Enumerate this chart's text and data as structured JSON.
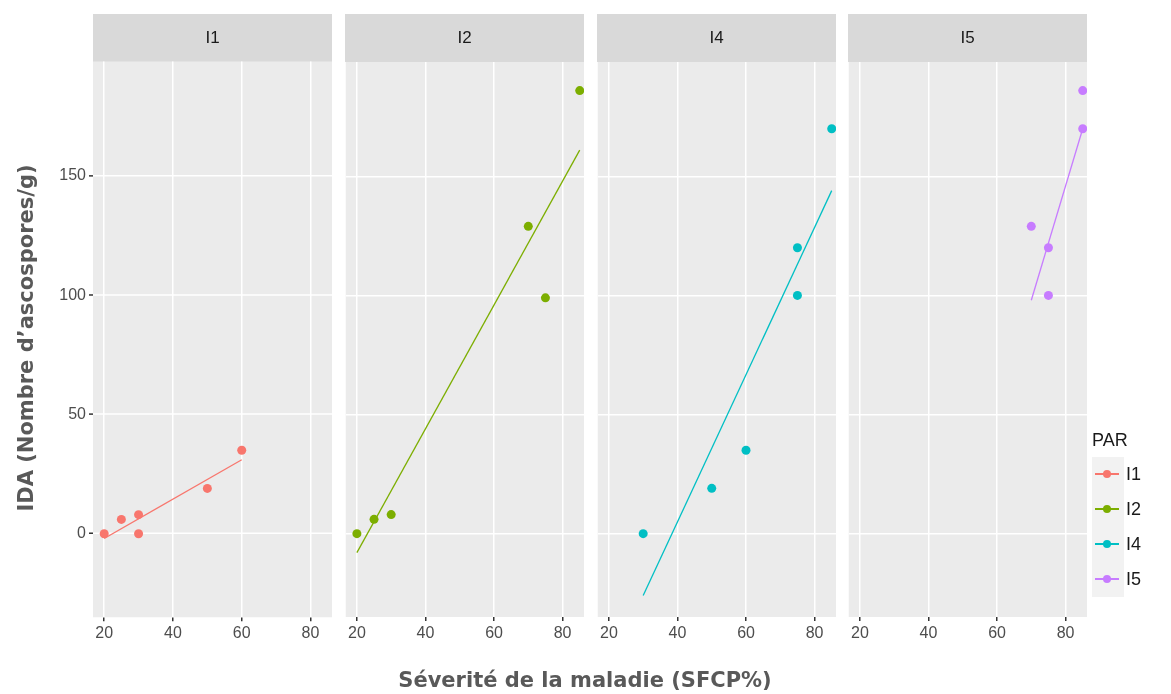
{
  "chart_data": [
    {
      "type": "scatter",
      "title": "I1",
      "ylabel": "IDA (Nombre d’ascospores/g)",
      "xlabel": "Séverité de la maladie (SFCP%)",
      "xlim": [
        16.75,
        86.25
      ],
      "xticks": [
        20,
        40,
        60,
        80
      ],
      "ylim": [
        -35,
        198
      ],
      "yticks": [
        0,
        50,
        100,
        150
      ],
      "grid": true,
      "tick_labels": "xy",
      "series": [
        {
          "name": "I1",
          "type": "scatter",
          "marker": "circle",
          "color": "#f8766d",
          "x": [
            20,
            25,
            30,
            30,
            50,
            60
          ],
          "values": [
            0,
            6,
            8,
            0,
            19,
            35
          ]
        },
        {
          "type": "line",
          "marker": "none",
          "color": "#f8766d",
          "x": [
            20,
            60
          ],
          "values": [
            -2,
            31
          ]
        }
      ]
    },
    {
      "type": "scatter",
      "title": "I2",
      "xlim": [
        16.75,
        86.25
      ],
      "xticks": [
        20,
        40,
        60,
        80
      ],
      "ylim": [
        -35,
        198
      ],
      "yticks": [
        0,
        50,
        100,
        150
      ],
      "grid": true,
      "tick_labels": "x",
      "series": [
        {
          "name": "I2",
          "type": "scatter",
          "marker": "circle",
          "color": "#7cae00",
          "x": [
            20,
            25,
            30,
            70,
            75,
            85
          ],
          "values": [
            0,
            6,
            8,
            129,
            99,
            186
          ]
        },
        {
          "type": "line",
          "marker": "none",
          "color": "#7cae00",
          "x": [
            20,
            85
          ],
          "values": [
            -8,
            161
          ]
        }
      ]
    },
    {
      "type": "scatter",
      "title": "I4",
      "xlim": [
        16.75,
        86.25
      ],
      "xticks": [
        20,
        40,
        60,
        80
      ],
      "ylim": [
        -35,
        198
      ],
      "yticks": [
        0,
        50,
        100,
        150
      ],
      "grid": true,
      "tick_labels": "x",
      "series": [
        {
          "name": "I4",
          "type": "scatter",
          "marker": "circle",
          "color": "#00bfc4",
          "x": [
            30,
            50,
            60,
            75,
            75,
            85
          ],
          "values": [
            0,
            19,
            35,
            120,
            100,
            170
          ]
        },
        {
          "type": "line",
          "marker": "none",
          "color": "#00bfc4",
          "x": [
            30,
            85
          ],
          "values": [
            -26,
            144
          ]
        }
      ]
    },
    {
      "type": "scatter",
      "title": "I5",
      "xlim": [
        16.75,
        86.25
      ],
      "xticks": [
        20,
        40,
        60,
        80
      ],
      "ylim": [
        -35,
        198
      ],
      "yticks": [
        0,
        50,
        100,
        150
      ],
      "grid": true,
      "tick_labels": "x",
      "legend": "right",
      "legend_title": "PAR",
      "series": [
        {
          "name": "I5",
          "type": "scatter",
          "marker": "circle",
          "color": "#c77cff",
          "x": [
            70,
            75,
            75,
            85,
            85
          ],
          "values": [
            129,
            120,
            100,
            186,
            170
          ]
        },
        {
          "type": "line",
          "marker": "none",
          "color": "#c77cff",
          "x": [
            70,
            85
          ],
          "values": [
            98,
            170
          ]
        }
      ]
    }
  ]
}
